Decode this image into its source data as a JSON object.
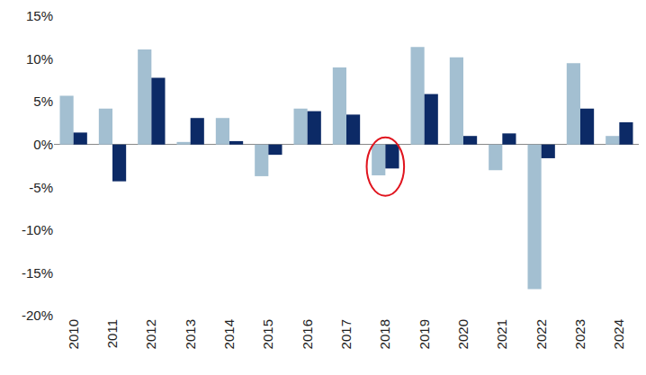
{
  "chart_data": {
    "type": "bar",
    "categories": [
      "2010",
      "2011",
      "2012",
      "2013",
      "2014",
      "2015",
      "2016",
      "2017",
      "2018",
      "2019",
      "2020",
      "2021",
      "2022",
      "2023",
      "2024"
    ],
    "series": [
      {
        "color": "#a3bfd1",
        "values": [
          5.7,
          4.2,
          11.1,
          0.3,
          3.1,
          -3.7,
          4.2,
          9.0,
          -3.6,
          11.4,
          10.2,
          -3.0,
          -16.9,
          9.5,
          1.0
        ]
      },
      {
        "color": "#0c2a66",
        "values": [
          1.4,
          -4.3,
          7.8,
          3.1,
          0.4,
          -1.2,
          3.9,
          3.5,
          -2.8,
          5.9,
          1.0,
          1.3,
          -1.6,
          4.2,
          2.6
        ]
      }
    ],
    "ylim": [
      -20,
      15
    ],
    "yticks": [
      {
        "value": -20,
        "label": "-20%"
      },
      {
        "value": -15,
        "label": "-15%"
      },
      {
        "value": -10,
        "label": "-10%"
      },
      {
        "value": -5,
        "label": "-5%"
      },
      {
        "value": 0,
        "label": "0%"
      },
      {
        "value": 5,
        "label": "5%"
      },
      {
        "value": 10,
        "label": "10%"
      },
      {
        "value": 15,
        "label": "15%"
      }
    ],
    "grid": false
  }
}
